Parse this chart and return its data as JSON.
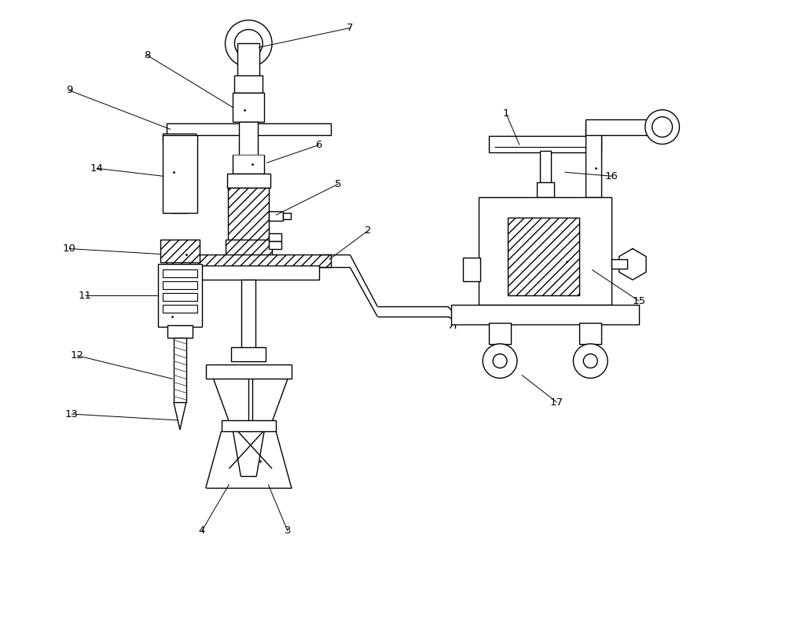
{
  "background_color": "#ffffff",
  "line_color": "#000000",
  "label_color": "#000000",
  "figsize": [
    10.0,
    7.88
  ],
  "dpi": 100
}
